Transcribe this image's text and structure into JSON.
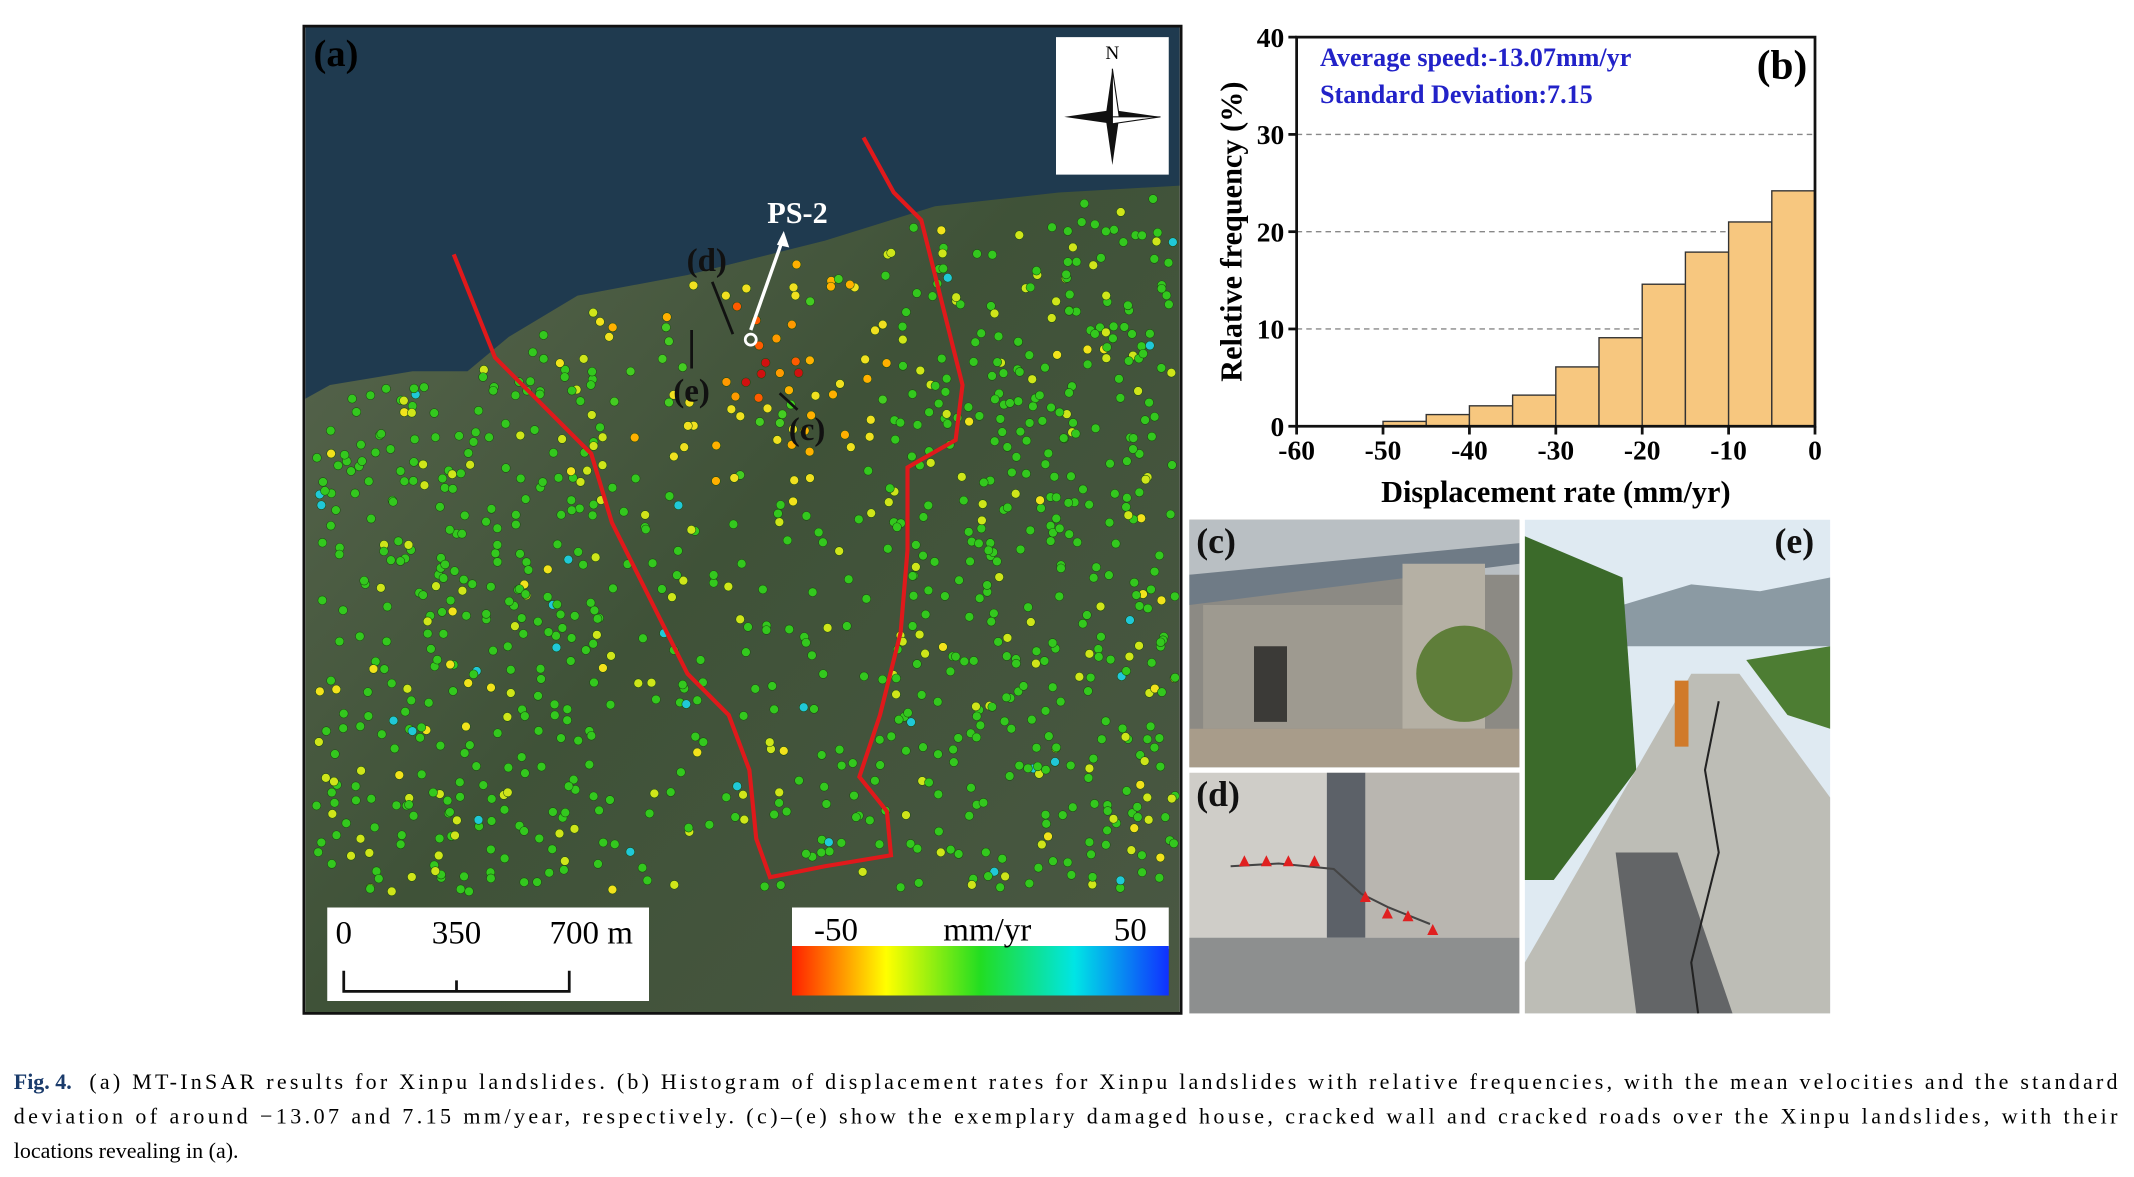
{
  "panel_a": {
    "label": "(a)",
    "north": "N",
    "ps_label": "PS-2",
    "site_labels": [
      "(d)",
      "(e)",
      "(c)"
    ],
    "scale_bar": [
      "0",
      "350",
      "700 m"
    ],
    "colorbar": {
      "min_label": "-50",
      "unit": "mm/yr",
      "max_label": "50"
    }
  },
  "chart_data": {
    "type": "histogram",
    "panel_label": "(b)",
    "annotations": [
      "Average speed:-13.07mm/yr",
      "Standard Deviation:7.15"
    ],
    "x_label": "Displacement rate (mm/yr)",
    "y_label": "Relative frequency (%)",
    "bins": [
      -50,
      -45,
      -40,
      -35,
      -30,
      -25,
      -20,
      -15,
      -10,
      -5,
      0
    ],
    "values": [
      0.5,
      1.2,
      2.1,
      3.2,
      6.1,
      9.1,
      14.6,
      17.9,
      21,
      24.2
    ],
    "color": "#f7c77f",
    "xlim": [
      -60,
      0
    ],
    "ylim": [
      0,
      40
    ],
    "xticks": [
      -60,
      -50,
      -40,
      -30,
      -20,
      -10,
      0
    ],
    "yticks": [
      0,
      10,
      20,
      30,
      40
    ],
    "grid": true
  },
  "photos": {
    "c": "(c)",
    "d": "(d)",
    "e": "(e)"
  },
  "caption": {
    "label": "Fig. 4.",
    "lines": [
      "(a) MT-InSAR results for Xinpu landslides. (b) Histogram of displacement rates for Xinpu landslides with relative frequencies, with the mean velocities and the standard",
      "deviation of around −13.07 and 7.15 mm/year, respectively. (c)–(e) show the exemplary damaged house, cracked wall and cracked roads over the Xinpu landslides, with their",
      "locations revealing in (a)."
    ]
  }
}
